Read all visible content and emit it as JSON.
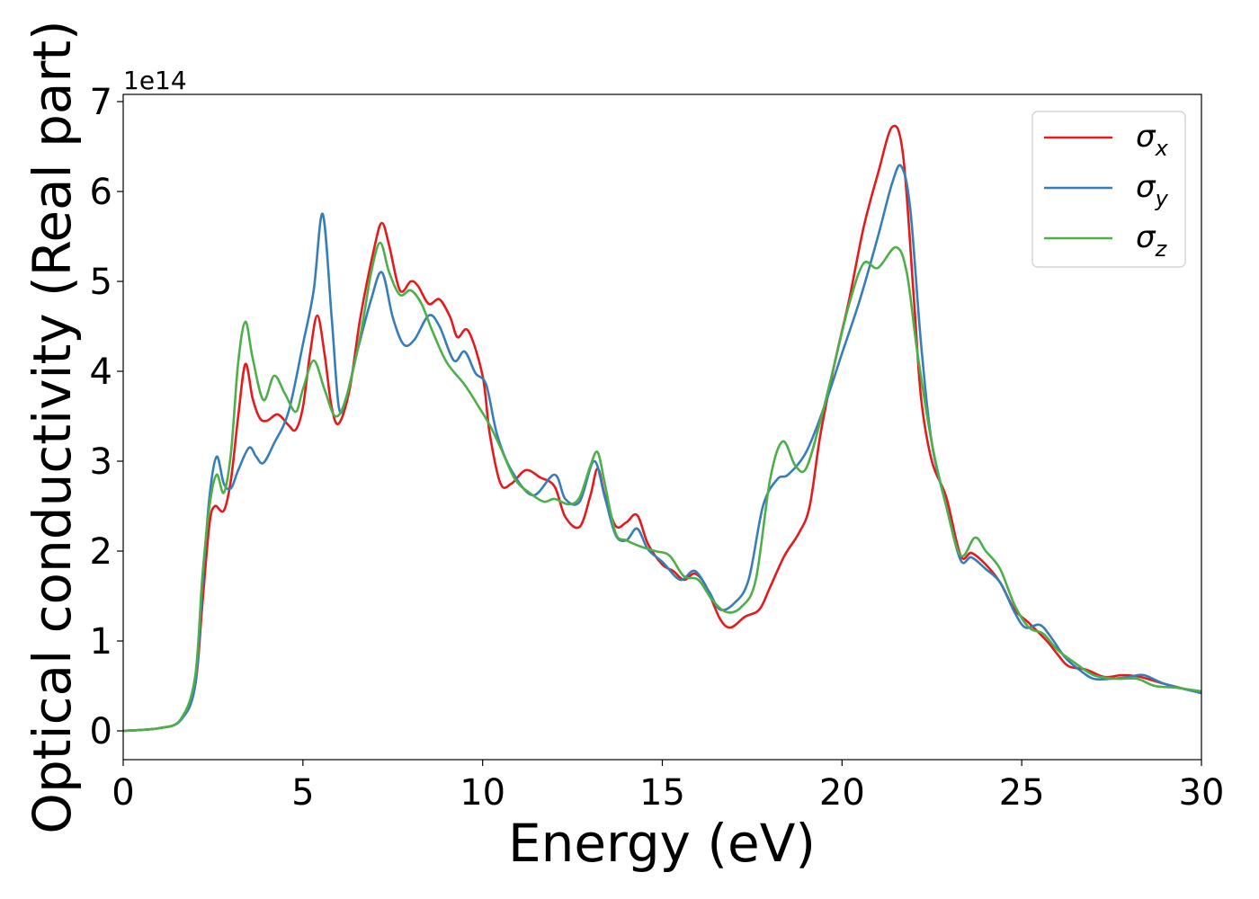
{
  "chart_data": {
    "type": "line",
    "xlabel": "Energy (eV)",
    "ylabel": "Optical conductivity (Real part)",
    "y_offset_label": "1e14",
    "xlim": [
      0,
      30
    ],
    "ylim": [
      -0.32,
      7.08
    ],
    "x_ticks": [
      0,
      5,
      10,
      15,
      20,
      25,
      30
    ],
    "y_ticks": [
      0,
      1,
      2,
      3,
      4,
      5,
      6,
      7
    ],
    "grid": false,
    "legend_position": "top-right",
    "series": [
      {
        "name": "σx",
        "legend_base": "σ",
        "legend_sub": "x",
        "color": "#e41a1c",
        "points": [
          [
            0,
            0
          ],
          [
            1,
            0.03
          ],
          [
            1.6,
            0.12
          ],
          [
            2.0,
            0.5
          ],
          [
            2.2,
            1.4
          ],
          [
            2.4,
            2.3
          ],
          [
            2.55,
            2.5
          ],
          [
            2.8,
            2.45
          ],
          [
            3.0,
            2.8
          ],
          [
            3.2,
            3.5
          ],
          [
            3.4,
            4.08
          ],
          [
            3.6,
            3.7
          ],
          [
            3.8,
            3.48
          ],
          [
            4.0,
            3.45
          ],
          [
            4.3,
            3.52
          ],
          [
            4.6,
            3.4
          ],
          [
            4.8,
            3.35
          ],
          [
            5.0,
            3.6
          ],
          [
            5.2,
            4.2
          ],
          [
            5.4,
            4.62
          ],
          [
            5.6,
            4.2
          ],
          [
            5.8,
            3.6
          ],
          [
            6.0,
            3.42
          ],
          [
            6.3,
            3.8
          ],
          [
            6.6,
            4.6
          ],
          [
            7.0,
            5.4
          ],
          [
            7.2,
            5.65
          ],
          [
            7.4,
            5.4
          ],
          [
            7.7,
            4.9
          ],
          [
            8.0,
            5.0
          ],
          [
            8.2,
            4.95
          ],
          [
            8.5,
            4.75
          ],
          [
            8.8,
            4.8
          ],
          [
            9.1,
            4.6
          ],
          [
            9.3,
            4.38
          ],
          [
            9.6,
            4.45
          ],
          [
            10.0,
            3.95
          ],
          [
            10.2,
            3.3
          ],
          [
            10.5,
            2.75
          ],
          [
            10.8,
            2.75
          ],
          [
            11.2,
            2.9
          ],
          [
            11.6,
            2.82
          ],
          [
            12.0,
            2.72
          ],
          [
            12.3,
            2.38
          ],
          [
            12.7,
            2.27
          ],
          [
            13.0,
            2.62
          ],
          [
            13.2,
            2.92
          ],
          [
            13.4,
            2.62
          ],
          [
            13.7,
            2.28
          ],
          [
            14.0,
            2.32
          ],
          [
            14.3,
            2.4
          ],
          [
            14.6,
            2.08
          ],
          [
            15.0,
            1.85
          ],
          [
            15.3,
            1.78
          ],
          [
            15.6,
            1.68
          ],
          [
            15.9,
            1.75
          ],
          [
            16.2,
            1.62
          ],
          [
            16.6,
            1.25
          ],
          [
            16.9,
            1.15
          ],
          [
            17.3,
            1.27
          ],
          [
            17.7,
            1.35
          ],
          [
            18.0,
            1.6
          ],
          [
            18.4,
            1.95
          ],
          [
            18.8,
            2.2
          ],
          [
            19.1,
            2.5
          ],
          [
            19.4,
            3.3
          ],
          [
            19.8,
            4.1
          ],
          [
            20.2,
            4.8
          ],
          [
            20.6,
            5.6
          ],
          [
            21.0,
            6.2
          ],
          [
            21.4,
            6.72
          ],
          [
            21.7,
            6.4
          ],
          [
            22.0,
            4.8
          ],
          [
            22.2,
            3.7
          ],
          [
            22.5,
            3.0
          ],
          [
            22.9,
            2.6
          ],
          [
            23.3,
            1.95
          ],
          [
            23.6,
            1.98
          ],
          [
            24.0,
            1.85
          ],
          [
            24.4,
            1.65
          ],
          [
            24.8,
            1.35
          ],
          [
            25.2,
            1.2
          ],
          [
            25.7,
            1.0
          ],
          [
            26.0,
            0.85
          ],
          [
            26.3,
            0.72
          ],
          [
            26.8,
            0.68
          ],
          [
            27.3,
            0.6
          ],
          [
            27.8,
            0.62
          ],
          [
            28.3,
            0.6
          ],
          [
            29.0,
            0.52
          ],
          [
            30,
            0.42
          ]
        ]
      },
      {
        "name": "σy",
        "legend_base": "σ",
        "legend_sub": "y",
        "color": "#377eb8",
        "points": [
          [
            0,
            0
          ],
          [
            1,
            0.03
          ],
          [
            1.6,
            0.12
          ],
          [
            2.0,
            0.5
          ],
          [
            2.2,
            1.6
          ],
          [
            2.4,
            2.6
          ],
          [
            2.6,
            3.05
          ],
          [
            2.8,
            2.75
          ],
          [
            3.0,
            2.7
          ],
          [
            3.2,
            2.9
          ],
          [
            3.5,
            3.15
          ],
          [
            3.7,
            3.05
          ],
          [
            3.9,
            2.98
          ],
          [
            4.2,
            3.2
          ],
          [
            4.6,
            3.55
          ],
          [
            5.0,
            4.3
          ],
          [
            5.3,
            4.9
          ],
          [
            5.55,
            5.75
          ],
          [
            5.8,
            4.6
          ],
          [
            6.0,
            3.6
          ],
          [
            6.2,
            3.7
          ],
          [
            6.5,
            4.2
          ],
          [
            6.9,
            4.8
          ],
          [
            7.2,
            5.1
          ],
          [
            7.5,
            4.6
          ],
          [
            7.8,
            4.3
          ],
          [
            8.1,
            4.35
          ],
          [
            8.5,
            4.62
          ],
          [
            8.8,
            4.5
          ],
          [
            9.2,
            4.12
          ],
          [
            9.5,
            4.22
          ],
          [
            9.8,
            3.98
          ],
          [
            10.1,
            3.85
          ],
          [
            10.4,
            3.3
          ],
          [
            10.8,
            2.9
          ],
          [
            11.4,
            2.62
          ],
          [
            12.0,
            2.85
          ],
          [
            12.3,
            2.58
          ],
          [
            12.7,
            2.55
          ],
          [
            13.1,
            3.0
          ],
          [
            13.4,
            2.6
          ],
          [
            13.7,
            2.18
          ],
          [
            14.0,
            2.12
          ],
          [
            14.3,
            2.25
          ],
          [
            14.6,
            2.02
          ],
          [
            15.0,
            1.88
          ],
          [
            15.5,
            1.68
          ],
          [
            15.9,
            1.78
          ],
          [
            16.3,
            1.55
          ],
          [
            16.6,
            1.35
          ],
          [
            17.0,
            1.42
          ],
          [
            17.4,
            1.68
          ],
          [
            17.8,
            2.5
          ],
          [
            18.2,
            2.8
          ],
          [
            18.5,
            2.85
          ],
          [
            19.0,
            3.1
          ],
          [
            19.5,
            3.6
          ],
          [
            20.0,
            4.2
          ],
          [
            20.5,
            4.8
          ],
          [
            21.0,
            5.5
          ],
          [
            21.4,
            6.1
          ],
          [
            21.65,
            6.28
          ],
          [
            21.9,
            5.8
          ],
          [
            22.2,
            4.3
          ],
          [
            22.5,
            3.2
          ],
          [
            22.9,
            2.5
          ],
          [
            23.3,
            1.9
          ],
          [
            23.6,
            1.93
          ],
          [
            24.0,
            1.8
          ],
          [
            24.4,
            1.65
          ],
          [
            24.8,
            1.32
          ],
          [
            25.1,
            1.15
          ],
          [
            25.5,
            1.18
          ],
          [
            25.8,
            1.05
          ],
          [
            26.2,
            0.82
          ],
          [
            26.6,
            0.68
          ],
          [
            27.0,
            0.58
          ],
          [
            27.5,
            0.58
          ],
          [
            28.0,
            0.6
          ],
          [
            28.4,
            0.62
          ],
          [
            29.0,
            0.52
          ],
          [
            30,
            0.42
          ]
        ]
      },
      {
        "name": "σz",
        "legend_base": "σ",
        "legend_sub": "z",
        "color": "#4daf4a",
        "points": [
          [
            0,
            0
          ],
          [
            1,
            0.03
          ],
          [
            1.6,
            0.13
          ],
          [
            2.0,
            0.6
          ],
          [
            2.2,
            1.7
          ],
          [
            2.4,
            2.5
          ],
          [
            2.6,
            2.85
          ],
          [
            2.8,
            2.65
          ],
          [
            3.0,
            3.1
          ],
          [
            3.2,
            4.1
          ],
          [
            3.4,
            4.55
          ],
          [
            3.6,
            4.15
          ],
          [
            3.9,
            3.68
          ],
          [
            4.2,
            3.95
          ],
          [
            4.5,
            3.75
          ],
          [
            4.8,
            3.55
          ],
          [
            5.0,
            3.8
          ],
          [
            5.3,
            4.12
          ],
          [
            5.6,
            3.8
          ],
          [
            5.9,
            3.5
          ],
          [
            6.2,
            3.7
          ],
          [
            6.6,
            4.4
          ],
          [
            6.9,
            5.1
          ],
          [
            7.15,
            5.43
          ],
          [
            7.4,
            5.1
          ],
          [
            7.7,
            4.85
          ],
          [
            8.0,
            4.9
          ],
          [
            8.3,
            4.75
          ],
          [
            8.6,
            4.45
          ],
          [
            9.0,
            4.1
          ],
          [
            9.5,
            3.85
          ],
          [
            9.9,
            3.6
          ],
          [
            10.2,
            3.4
          ],
          [
            10.5,
            3.15
          ],
          [
            10.9,
            2.8
          ],
          [
            11.3,
            2.65
          ],
          [
            11.7,
            2.55
          ],
          [
            12.0,
            2.58
          ],
          [
            12.4,
            2.52
          ],
          [
            12.7,
            2.6
          ],
          [
            13.0,
            2.95
          ],
          [
            13.2,
            3.1
          ],
          [
            13.4,
            2.75
          ],
          [
            13.7,
            2.2
          ],
          [
            14.0,
            2.12
          ],
          [
            14.4,
            2.05
          ],
          [
            14.8,
            2.0
          ],
          [
            15.2,
            1.95
          ],
          [
            15.6,
            1.72
          ],
          [
            16.0,
            1.68
          ],
          [
            16.4,
            1.45
          ],
          [
            16.8,
            1.32
          ],
          [
            17.2,
            1.38
          ],
          [
            17.6,
            1.68
          ],
          [
            18.0,
            2.8
          ],
          [
            18.35,
            3.22
          ],
          [
            18.7,
            2.95
          ],
          [
            19.0,
            2.92
          ],
          [
            19.4,
            3.45
          ],
          [
            19.8,
            4.1
          ],
          [
            20.2,
            4.75
          ],
          [
            20.6,
            5.2
          ],
          [
            21.0,
            5.15
          ],
          [
            21.5,
            5.38
          ],
          [
            21.8,
            5.1
          ],
          [
            22.1,
            4.2
          ],
          [
            22.5,
            3.2
          ],
          [
            22.9,
            2.5
          ],
          [
            23.3,
            1.95
          ],
          [
            23.7,
            2.15
          ],
          [
            24.0,
            2.0
          ],
          [
            24.4,
            1.8
          ],
          [
            24.8,
            1.4
          ],
          [
            25.2,
            1.15
          ],
          [
            25.6,
            1.08
          ],
          [
            26.0,
            0.9
          ],
          [
            26.5,
            0.75
          ],
          [
            27.0,
            0.62
          ],
          [
            27.6,
            0.58
          ],
          [
            28.2,
            0.58
          ],
          [
            28.7,
            0.5
          ],
          [
            29.3,
            0.48
          ],
          [
            30,
            0.44
          ]
        ]
      }
    ]
  }
}
